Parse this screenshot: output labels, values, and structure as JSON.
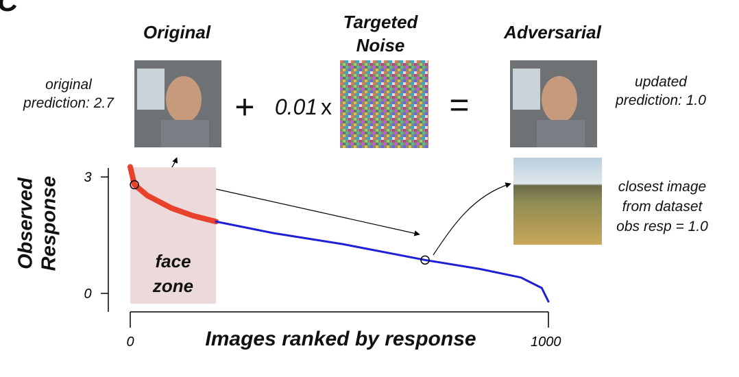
{
  "panel_label": "C",
  "panels": {
    "original": {
      "title": "Original",
      "caption": "original prediction: 2.7"
    },
    "noise": {
      "title": "Targeted Noise",
      "coefficient": "0.01",
      "times": "x"
    },
    "adversarial": {
      "title": "Adversarial",
      "caption": "updated prediction: 1.0"
    },
    "closest": {
      "caption": "closest image from dataset obs resp = 1.0"
    }
  },
  "operators": {
    "plus": "+",
    "equals": "="
  },
  "chart_data": {
    "type": "line",
    "xlabel": "Images ranked by response",
    "ylabel": "Observed Response",
    "x": [
      0,
      10,
      41,
      98,
      150,
      205,
      344,
      508,
      705,
      836,
      934,
      984,
      1000
    ],
    "series": [
      {
        "color": "#e8412c",
        "values": [
          3.26,
          2.8,
          2.52,
          2.2,
          2.0,
          1.85,
          null,
          null,
          null,
          null,
          null,
          null,
          null
        ]
      },
      {
        "color": "#1f1fd6",
        "values": [
          null,
          null,
          null,
          null,
          null,
          1.85,
          1.55,
          1.27,
          0.86,
          0.63,
          0.41,
          0.14,
          -0.21
        ]
      }
    ],
    "xlim": [
      0,
      1000
    ],
    "xticks": [
      0,
      1000
    ],
    "ylim": [
      -0.5,
      3.3
    ],
    "yticks": [
      0,
      3
    ],
    "span": {
      "label": "face zone",
      "x": [
        0,
        205
      ]
    },
    "markers": [
      {
        "x": 10,
        "y": 2.8
      },
      {
        "x": 705,
        "y": 0.86
      }
    ]
  }
}
